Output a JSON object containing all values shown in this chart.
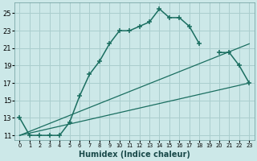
{
  "xlabel": "Humidex (Indice chaleur)",
  "bg_color": "#cce8e8",
  "grid_color": "#aacece",
  "line_color": "#1a6e60",
  "xlim": [
    -0.5,
    23.5
  ],
  "ylim": [
    10.5,
    26.2
  ],
  "xticks": [
    0,
    1,
    2,
    3,
    4,
    5,
    6,
    7,
    8,
    9,
    10,
    11,
    12,
    13,
    14,
    15,
    16,
    17,
    18,
    19,
    20,
    21,
    22,
    23
  ],
  "yticks": [
    11,
    13,
    15,
    17,
    19,
    21,
    23,
    25
  ],
  "curve1_x": [
    0,
    1,
    2,
    3,
    4,
    5,
    6,
    7,
    8,
    9,
    10,
    11,
    12,
    13,
    14,
    15,
    16,
    17,
    18
  ],
  "curve1_y": [
    13,
    11,
    11,
    11,
    11,
    12.5,
    15.5,
    18,
    19.5,
    21.5,
    23,
    23,
    23.5,
    24,
    25.5,
    24.5,
    24.5,
    23.5,
    21.5
  ],
  "curve2_x": [
    20,
    21,
    22,
    23
  ],
  "curve2_y": [
    20.5,
    20.5,
    19,
    17
  ],
  "line1_x": [
    0,
    23
  ],
  "line1_y": [
    11,
    21.5
  ],
  "line2_x": [
    0,
    23
  ],
  "line2_y": [
    11,
    17
  ]
}
